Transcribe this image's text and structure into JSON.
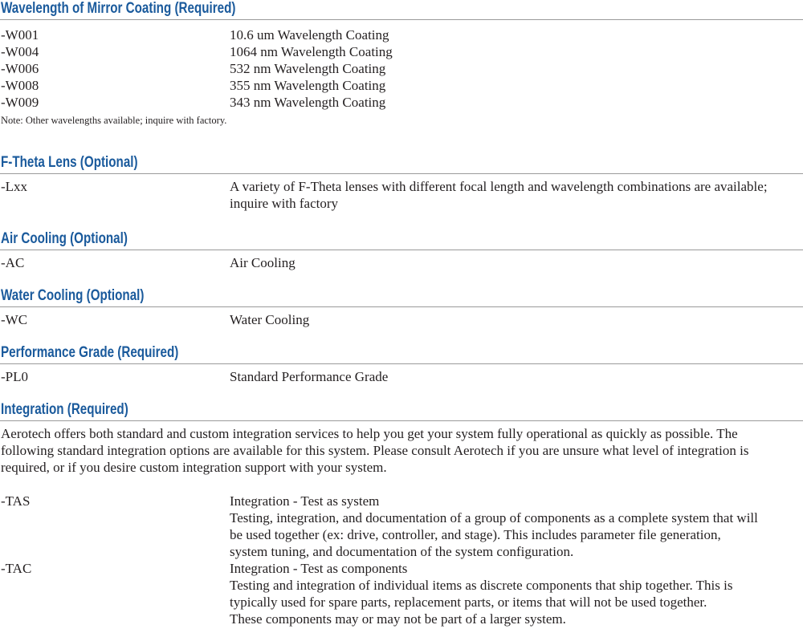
{
  "sections": [
    {
      "title": "Wavelength of Mirror Coating (Required)",
      "rows": [
        {
          "code": "-W001",
          "desc": [
            "10.6 um Wavelength Coating"
          ]
        },
        {
          "code": "-W004",
          "desc": [
            "1064 nm Wavelength Coating"
          ]
        },
        {
          "code": "-W006",
          "desc": [
            "532 nm Wavelength Coating"
          ]
        },
        {
          "code": "-W008",
          "desc": [
            "355 nm Wavelength Coating"
          ]
        },
        {
          "code": "-W009",
          "desc": [
            "343 nm Wavelength Coating"
          ]
        }
      ],
      "note": "Note: Other wavelengths available; inquire with factory."
    },
    {
      "title": "F-Theta Lens (Optional)",
      "rows": [
        {
          "code": "-Lxx",
          "desc": [
            "A variety of F-Theta lenses with different focal length and wavelength combinations are available;",
            "inquire with factory"
          ]
        }
      ]
    },
    {
      "title": "Air Cooling (Optional)",
      "rows": [
        {
          "code": "-AC",
          "desc": [
            "Air Cooling"
          ]
        }
      ]
    },
    {
      "title": "Water Cooling (Optional)",
      "rows": [
        {
          "code": "-WC",
          "desc": [
            "Water Cooling"
          ]
        }
      ]
    },
    {
      "title": "Performance Grade (Required)",
      "rows": [
        {
          "code": "-PL0",
          "desc": [
            "Standard Performance Grade"
          ]
        }
      ]
    },
    {
      "title": "Integration (Required)",
      "paragraph": [
        "Aerotech offers both standard and custom integration services to help you get your system fully operational as quickly as possible.  The",
        "following standard integration options are available for this system.  Please consult Aerotech if you are unsure what level of integration is",
        "required, or if you desire custom integration support with your system."
      ],
      "rows": [
        {
          "code": "-TAS",
          "desc": [
            "Integration - Test as system",
            "Testing, integration, and documentation of a group of components as a complete system that will",
            "be used together (ex: drive, controller, and stage). This includes parameter file generation,",
            "system tuning, and documentation of the system configuration."
          ]
        },
        {
          "code": "-TAC",
          "desc": [
            "Integration - Test as components",
            "Testing and integration of individual items as discrete components that ship together. This is",
            "typically used for spare parts, replacement parts, or items that will not be used together.",
            "These components may or may not be part of a larger system."
          ]
        }
      ]
    }
  ],
  "colors": {
    "heading": "#1a5a9c",
    "rule": "#9a9a9a",
    "text": "#231f20"
  }
}
